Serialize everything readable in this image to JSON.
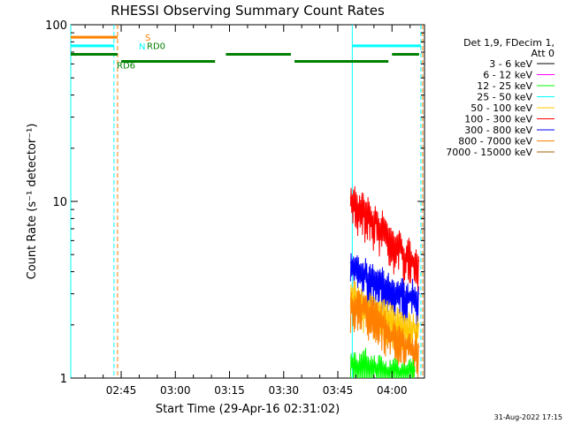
{
  "chart_data": {
    "type": "line",
    "title": "RHESSI Observing Summary Count Rates",
    "xlabel": "Start Time (29-Apr-16 02:31:02)",
    "ylabel": "Count Rate (s⁻¹ detector⁻¹)",
    "yscale": "log",
    "ylim": [
      1,
      100
    ],
    "xlim": [
      "02:31:02",
      "04:09:00"
    ],
    "x_ticks": [
      "02:45",
      "03:00",
      "03:15",
      "03:30",
      "03:45",
      "04:00"
    ],
    "y_ticks": [
      "1",
      "10",
      "100"
    ],
    "footer_date": "31-Aug-2022 17:15",
    "legend": {
      "header_line1": "Det 1,9, FDecim 1,",
      "header_line2": "Att 0",
      "entries": [
        {
          "label": "3 - 6 keV",
          "color": "#000000"
        },
        {
          "label": "6 - 12 keV",
          "color": "#ff00ff"
        },
        {
          "label": "12 - 25 keV",
          "color": "#00ff00"
        },
        {
          "label": "25 - 50 keV",
          "color": "#00ffff"
        },
        {
          "label": "50 - 100 keV",
          "color": "#ffc800"
        },
        {
          "label": "100 - 300 keV",
          "color": "#ff0000"
        },
        {
          "label": "300 - 800 keV",
          "color": "#0000ff"
        },
        {
          "label": "800 - 7000 keV",
          "color": "#ff8000"
        },
        {
          "label": "7000 - 15000 keV",
          "color": "#a06000"
        }
      ]
    },
    "state_bars": [
      {
        "label": "S",
        "color": "#ff8000",
        "y": 85,
        "segments": [
          [
            "02:31:02",
            "02:44:00"
          ]
        ]
      },
      {
        "label": "N",
        "color": "#00ffff",
        "y": 76,
        "segments": [
          [
            "02:31:02",
            "02:43:00"
          ],
          [
            "03:49:00",
            "04:08:00"
          ]
        ]
      },
      {
        "label": "RD0",
        "color": "#008000",
        "y": 68,
        "segments": [
          [
            "02:31:02",
            "02:44:00"
          ],
          [
            "03:14:00",
            "03:32:00"
          ],
          [
            "04:00:00",
            "04:07:30"
          ]
        ]
      },
      {
        "label": "RD6",
        "color": "#008000",
        "y": 62,
        "segments": [
          [
            "02:45:00",
            "03:11:00"
          ],
          [
            "03:33:00",
            "03:59:00"
          ]
        ]
      }
    ],
    "vlines": [
      {
        "t": "02:31:02",
        "color": "#00ffff",
        "style": "solid"
      },
      {
        "t": "02:43:00",
        "color": "#00ffff",
        "style": "dashed"
      },
      {
        "t": "02:44:00",
        "color": "#ff8000",
        "style": "dashed"
      },
      {
        "t": "03:49:00",
        "color": "#00ffff",
        "style": "solid"
      },
      {
        "t": "04:08:00",
        "color": "#00ffff",
        "style": "dashed"
      },
      {
        "t": "04:08:30",
        "color": "#ff8000",
        "style": "dashed"
      }
    ],
    "series": [
      {
        "name": "100 - 300 keV",
        "color": "#ff0000",
        "x": [
          "03:48:30",
          "03:49:30",
          "03:50:30",
          "03:51:30",
          "03:52:30",
          "03:53:30",
          "03:54:30",
          "03:55:30",
          "03:56:30",
          "03:57:30",
          "03:58:30",
          "03:59:30",
          "04:00:30",
          "04:01:30",
          "04:02:30",
          "04:03:30",
          "04:04:30",
          "04:05:30",
          "04:06:30",
          "04:07:30"
        ],
        "values": [
          10.5,
          11.0,
          9.5,
          10.5,
          9.0,
          9.5,
          8.0,
          8.5,
          7.5,
          8.0,
          7.0,
          6.5,
          6.0,
          6.2,
          5.8,
          5.0,
          5.5,
          4.8,
          5.0,
          4.6
        ]
      },
      {
        "name": "300 - 800 keV",
        "color": "#0000ff",
        "x": [
          "03:48:30",
          "03:49:30",
          "03:50:30",
          "03:51:30",
          "03:52:30",
          "03:53:30",
          "03:54:30",
          "03:55:30",
          "03:56:30",
          "03:57:30",
          "03:58:30",
          "03:59:30",
          "04:00:30",
          "04:01:30",
          "04:02:30",
          "04:03:30",
          "04:04:30",
          "04:05:30",
          "04:06:30",
          "04:07:30"
        ],
        "values": [
          4.5,
          4.2,
          4.4,
          4.0,
          4.2,
          3.8,
          4.0,
          3.7,
          3.9,
          3.6,
          3.5,
          3.4,
          3.3,
          3.2,
          3.3,
          3.1,
          3.0,
          3.2,
          2.9,
          3.0
        ]
      },
      {
        "name": "50 - 100 keV",
        "color": "#ffc800",
        "x": [
          "03:48:30",
          "03:50:30",
          "03:52:30",
          "03:54:30",
          "03:56:30",
          "03:58:30",
          "04:00:30",
          "04:02:30",
          "04:04:30",
          "04:06:30",
          "04:07:30"
        ],
        "values": [
          3.2,
          3.0,
          2.8,
          2.6,
          2.5,
          2.4,
          2.3,
          2.2,
          2.1,
          2.0,
          2.0
        ]
      },
      {
        "name": "800 - 7000 keV",
        "color": "#ff8000",
        "x": [
          "03:48:30",
          "03:49:30",
          "03:50:30",
          "03:51:30",
          "03:52:30",
          "03:53:30",
          "03:54:30",
          "03:55:30",
          "03:56:30",
          "03:57:30",
          "03:58:30",
          "03:59:30",
          "04:00:30",
          "04:01:30",
          "04:02:30",
          "04:03:30",
          "04:04:30",
          "04:05:30",
          "04:06:30",
          "04:07:30"
        ],
        "values": [
          2.8,
          2.7,
          2.9,
          2.6,
          2.8,
          2.5,
          2.7,
          2.4,
          2.3,
          2.2,
          2.0,
          1.8,
          1.9,
          1.7,
          1.8,
          1.6,
          1.7,
          1.5,
          1.6,
          1.5
        ]
      },
      {
        "name": "12 - 25 keV",
        "color": "#00ff00",
        "x": [
          "03:48:30",
          "03:50:30",
          "03:52:30",
          "03:54:30",
          "03:56:30",
          "03:58:30",
          "04:00:30",
          "04:02:30",
          "04:04:30",
          "04:06:30"
        ],
        "values": [
          1.3,
          1.2,
          1.3,
          1.2,
          1.2,
          1.1,
          1.2,
          1.1,
          1.2,
          1.1
        ]
      }
    ]
  }
}
